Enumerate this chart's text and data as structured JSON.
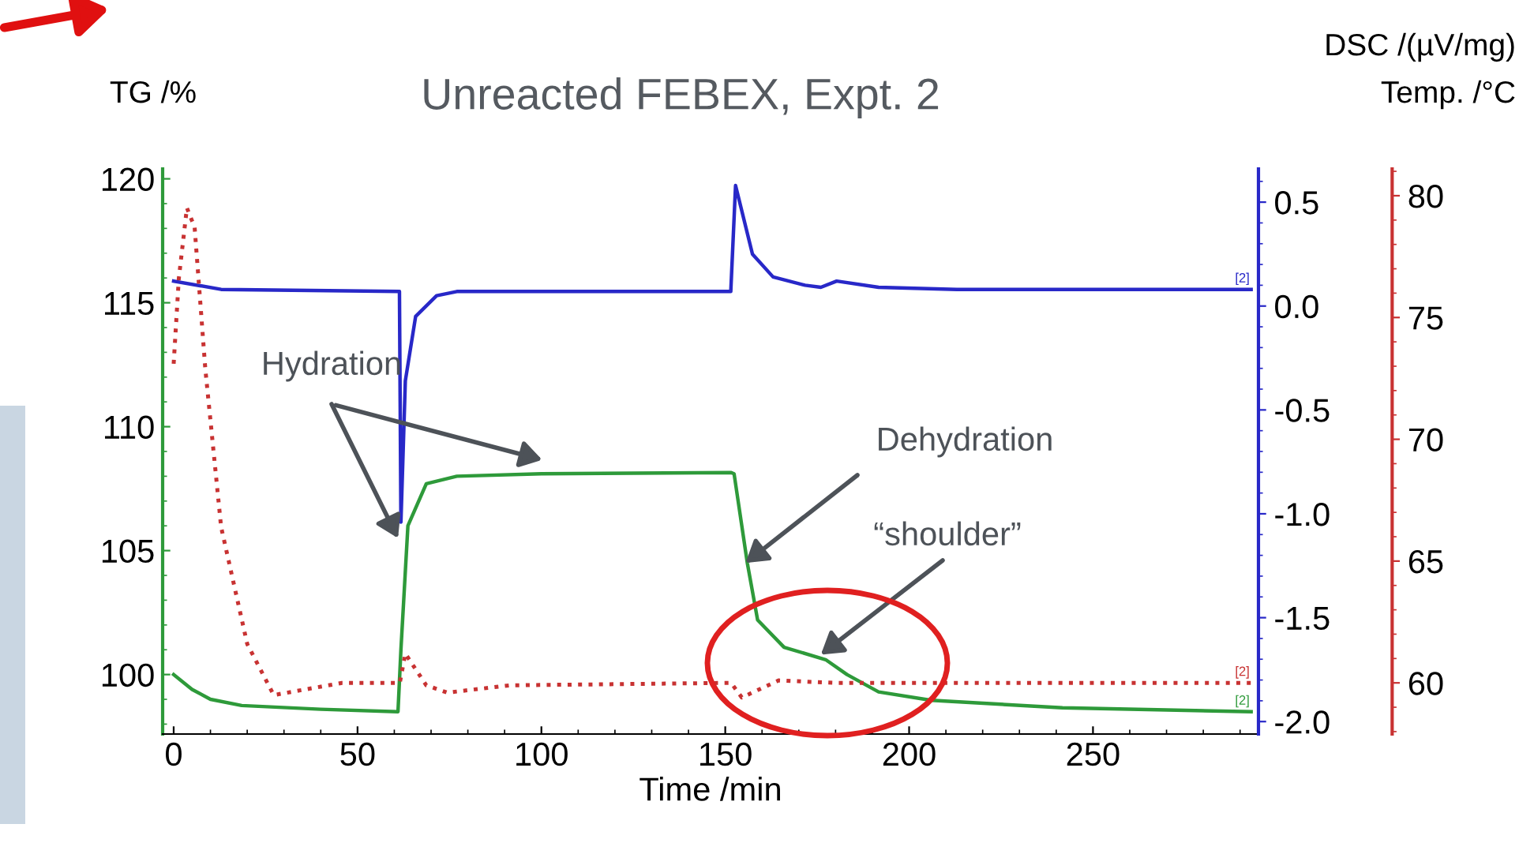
{
  "chart_data": {
    "type": "line",
    "title": "Unreacted FEBEX, Expt. 2",
    "xlabel": "Time /min",
    "ylabel": "TG /%",
    "y2label": "DSC /(µV/mg)",
    "y3label": "Temp. /°C",
    "xlim": [
      -3,
      295
    ],
    "xticks": [
      0,
      50,
      100,
      150,
      200,
      250
    ],
    "ylim": [
      97.6,
      120.4
    ],
    "yticks": [
      100,
      105,
      110,
      115,
      120
    ],
    "y2lim": [
      -2.06,
      0.66
    ],
    "y2ticks": [
      {
        "value": -2.0,
        "label": "-2.0"
      },
      {
        "value": -1.5,
        "label": "-1.5"
      },
      {
        "value": -1.0,
        "label": "-1.0"
      },
      {
        "value": -0.5,
        "label": "-0.5"
      },
      {
        "value": 0.0,
        "label": "0.0"
      },
      {
        "value": 0.5,
        "label": "0.5"
      }
    ],
    "y3lim": [
      57.9,
      81.1
    ],
    "y3ticks": [
      60,
      65,
      70,
      75,
      80
    ],
    "series": [
      {
        "color": "#2e9a3a",
        "line_style": "solid",
        "x": [
          0,
          5,
          10,
          18.5,
          40,
          61,
          61.8,
          63.7,
          68.7,
          77,
          100,
          151.5,
          152.4,
          156,
          158.8,
          166,
          177.3,
          183.1,
          191.7,
          206,
          241.7,
          293
        ],
        "values": [
          100.0,
          99.4,
          99.0,
          98.75,
          98.6,
          98.5,
          101.0,
          106.0,
          107.7,
          108.0,
          108.1,
          108.15,
          108.1,
          104.5,
          102.2,
          101.1,
          100.6,
          100.0,
          99.3,
          98.96,
          98.66,
          98.5
        ]
      },
      {
        "color": "#2828c8",
        "line_style": "solid",
        "axis": "y2",
        "x": [
          0,
          12.9,
          61.4,
          61.8,
          63,
          65.8,
          71.5,
          77,
          151.5,
          152.8,
          157.4,
          163,
          171.7,
          176,
          180.3,
          191.7,
          213,
          293
        ],
        "values": [
          0.12,
          0.08,
          0.07,
          -1.04,
          -0.36,
          -0.05,
          0.05,
          0.07,
          0.07,
          0.58,
          0.25,
          0.14,
          0.1,
          0.09,
          0.12,
          0.09,
          0.08,
          0.08
        ]
      },
      {
        "color": "#c83232",
        "line_style": "dotted",
        "axis": "y3",
        "x": [
          0,
          1.4,
          3.6,
          5.7,
          8.6,
          12.9,
          20,
          27.2,
          45.8,
          61.5,
          63,
          68.7,
          74.4,
          91.5,
          151.6,
          154.5,
          164.5,
          180,
          293
        ],
        "values": [
          73.1,
          76.6,
          79.5,
          78.7,
          72.9,
          66.4,
          61.6,
          59.5,
          60.0,
          60.0,
          61.2,
          59.9,
          59.6,
          59.9,
          60.0,
          59.4,
          60.1,
          60.0,
          60.0
        ]
      }
    ],
    "annotations": [
      {
        "text": "Hydration",
        "x": 61,
        "y": 105.5
      },
      {
        "text": "Dehydration",
        "x": 155.5,
        "y": 104.5
      },
      {
        "text": "“shoulder”",
        "x": 176,
        "y": 100.8
      },
      "[2]",
      "[2]",
      "[2]"
    ]
  }
}
